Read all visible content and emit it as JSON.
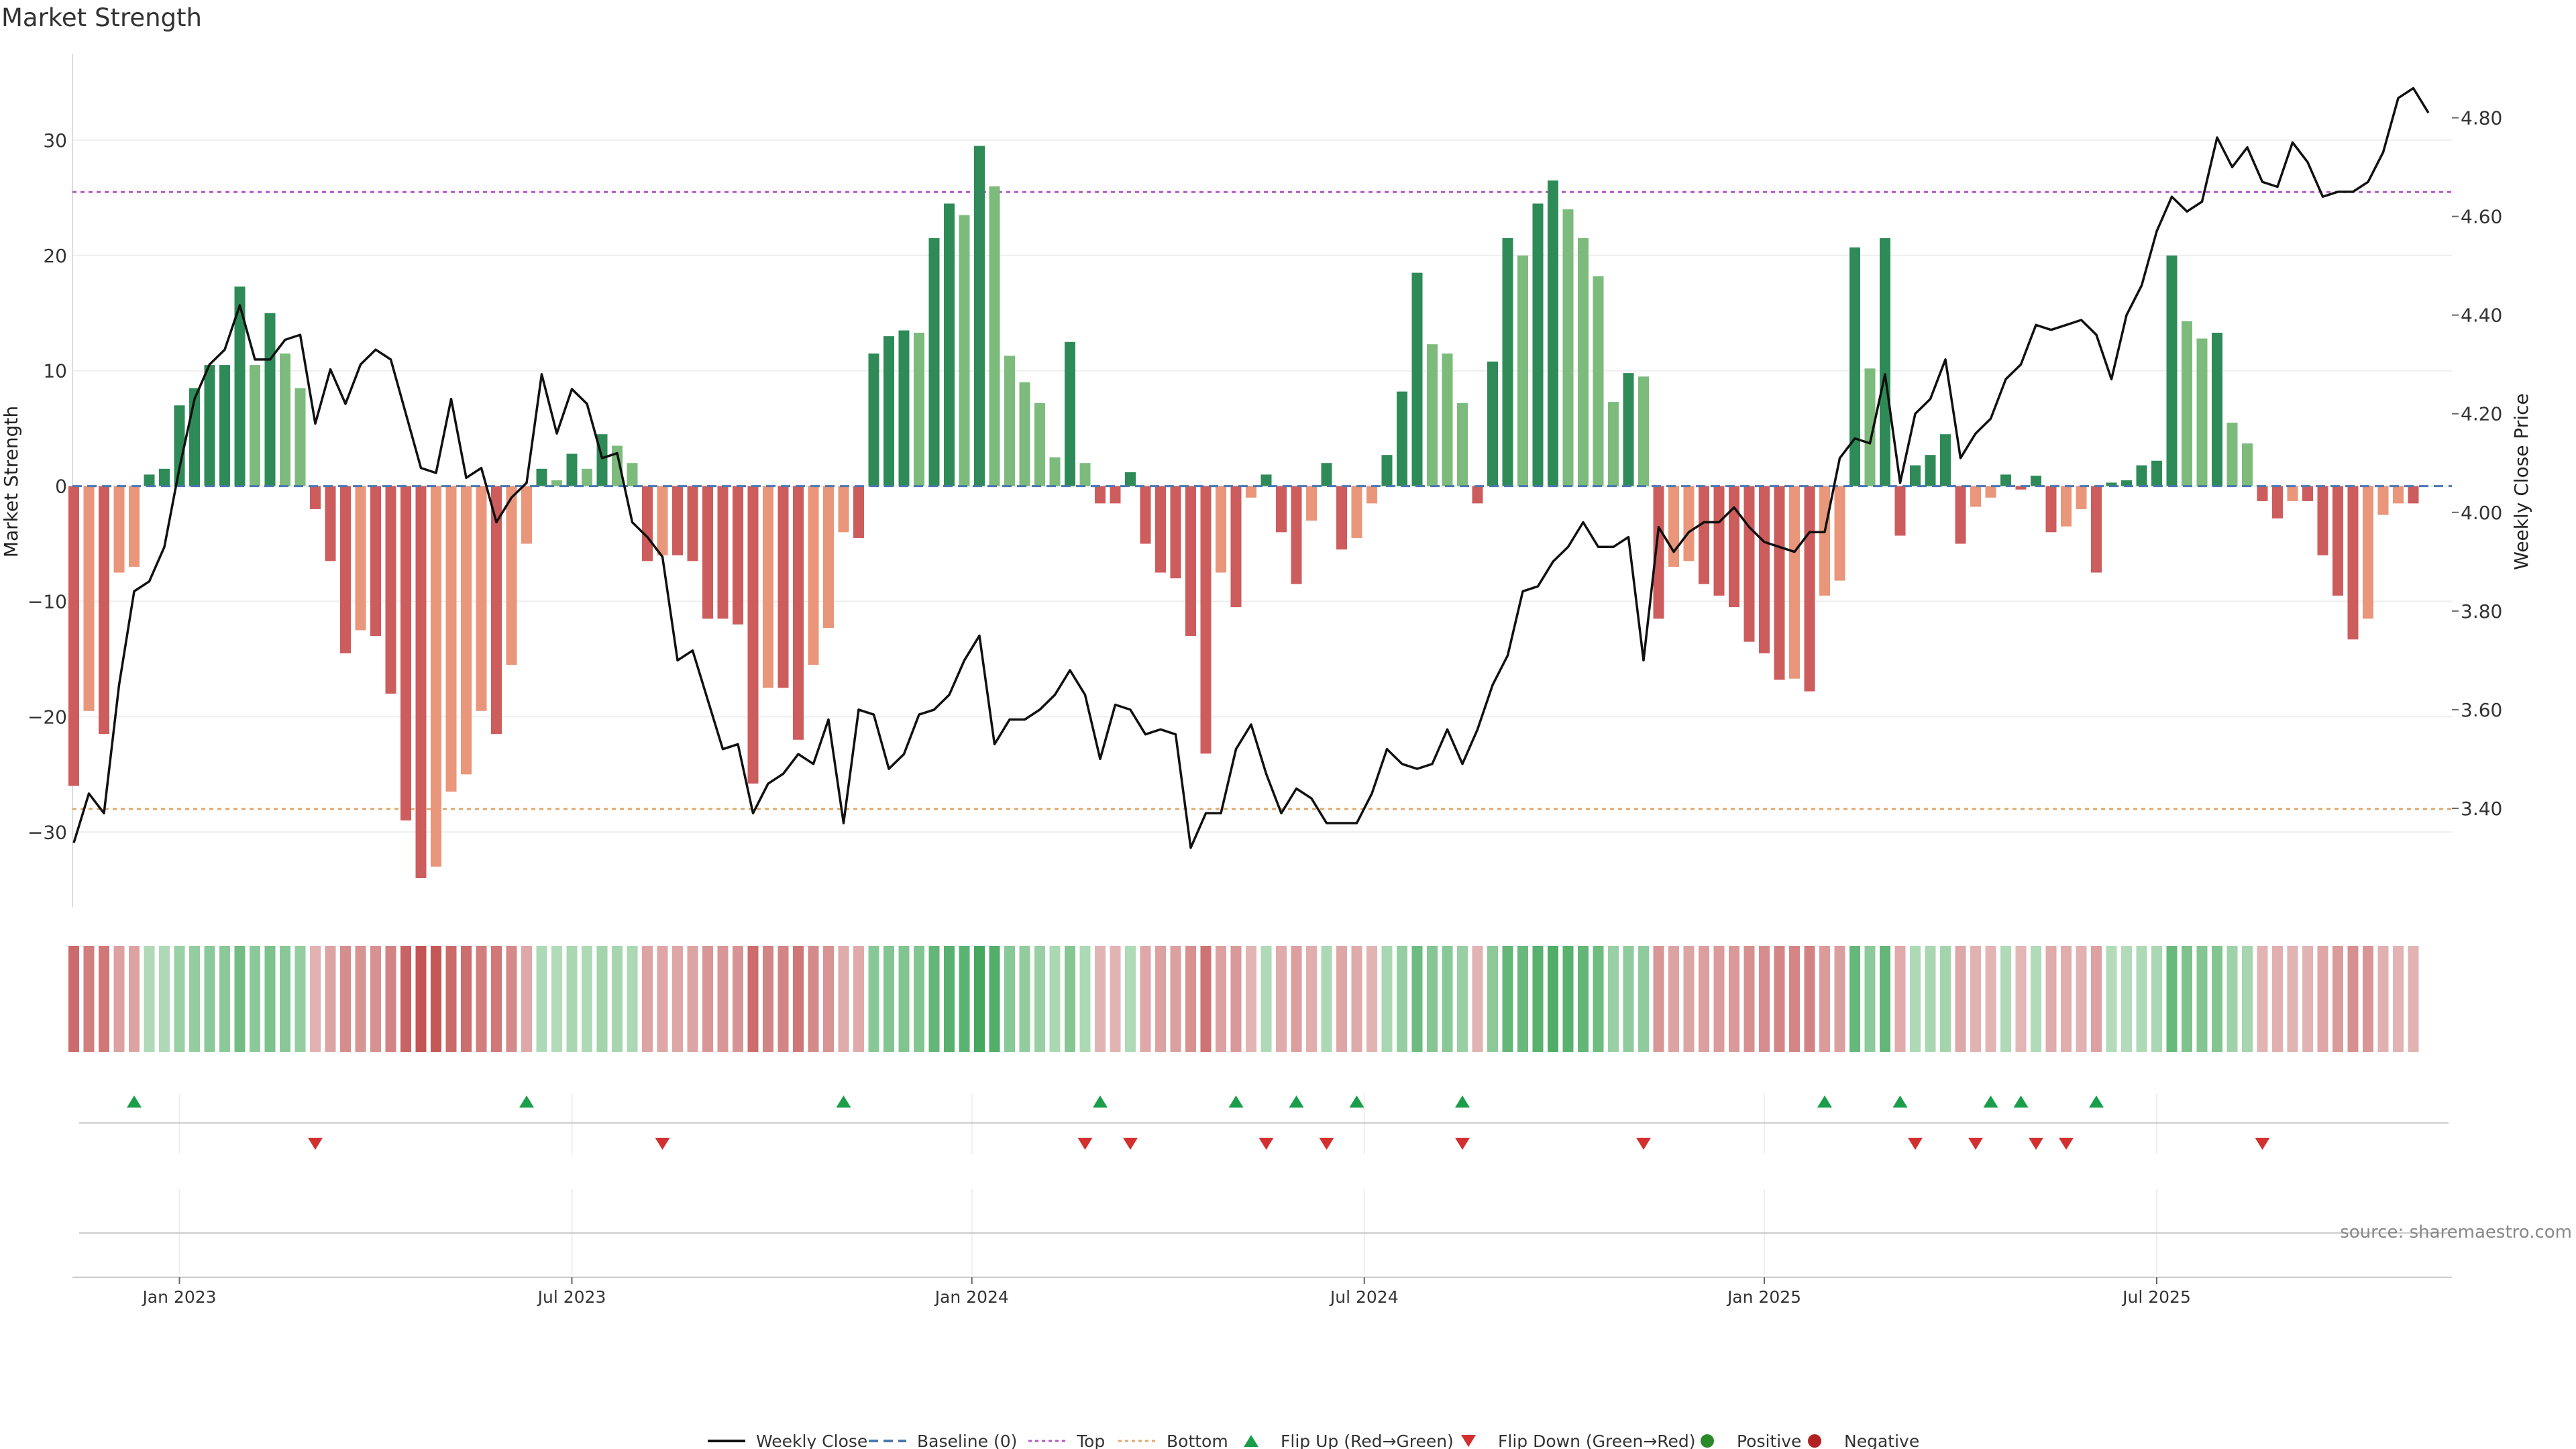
{
  "title": "Market Strength",
  "source": "source: sharemaestro.com",
  "colors": {
    "green_strong": "#2e8b57",
    "green_light": "#7dbb7d",
    "red_strong": "#cd5c5c",
    "red_light": "#e9967a",
    "close_line": "#111111",
    "baseline": "#4a78b0",
    "top_line": "#b455c8",
    "bottom_line": "#e0a86a",
    "flip_up": "#1a9e4a",
    "flip_down": "#d32f2f",
    "positive": "#2a8a2a",
    "negative": "#b22222"
  },
  "legend": [
    {
      "label": "Weekly Close",
      "icon": "solid-line"
    },
    {
      "label": "Baseline (0)",
      "icon": "dashed-line"
    },
    {
      "label": "Top",
      "icon": "dotted-line"
    },
    {
      "label": "Bottom",
      "icon": "dotted-line"
    },
    {
      "label": "Flip Up (Red→Green)",
      "icon": "triangle-up"
    },
    {
      "label": "Flip Down (Green→Red)",
      "icon": "triangle-down"
    },
    {
      "label": "Positive",
      "icon": "circle"
    },
    {
      "label": "Negative",
      "icon": "circle"
    }
  ],
  "chart_data": {
    "type": "bar",
    "title": "Market Strength",
    "ylabel": "Market Strength",
    "y2label": "Weekly Close Price",
    "ylim": [
      -36.5,
      37.5
    ],
    "y2lim": [
      3.2,
      4.93
    ],
    "yticks": [
      -30,
      -20,
      -10,
      0,
      10,
      20,
      30
    ],
    "y2ticks": [
      "3.40",
      "3.60",
      "3.80",
      "4.00",
      "4.20",
      "4.40",
      "4.60",
      "4.80"
    ],
    "x_ticks": [
      {
        "label": "Jan 2023",
        "week": 7
      },
      {
        "label": "Jul 2023",
        "week": 33
      },
      {
        "label": "Jan 2024",
        "week": 59.5
      },
      {
        "label": "Jul 2024",
        "week": 85.5
      },
      {
        "label": "Jan 2025",
        "week": 112
      },
      {
        "label": "Jul 2025",
        "week": 138
      }
    ],
    "top_threshold": 25.5,
    "bottom_threshold": -28,
    "baseline": 0,
    "strength": [
      -26,
      -19.5,
      -21.5,
      -7.5,
      -7,
      1,
      1.5,
      7,
      8.5,
      10.5,
      10.5,
      17.3,
      10.5,
      15,
      11.5,
      8.5,
      -2,
      -6.5,
      -14.5,
      -12.5,
      -13,
      -18,
      -29,
      -34,
      -33,
      -26.5,
      -25,
      -19.5,
      -21.5,
      -15.5,
      -5,
      1.5,
      0.5,
      2.8,
      1.5,
      4.5,
      3.5,
      2,
      -6.5,
      -6,
      -6,
      -6.5,
      -11.5,
      -11.5,
      -12,
      -25.8,
      -17.5,
      -17.5,
      -22,
      -15.5,
      -12.3,
      -4,
      -4.5,
      11.5,
      13,
      13.5,
      13.3,
      21.5,
      24.5,
      23.5,
      29.5,
      26,
      11.3,
      9,
      7.2,
      2.5,
      12.5,
      2,
      -1.5,
      -1.5,
      1.2,
      -5,
      -7.5,
      -8,
      -13,
      -23.2,
      -7.5,
      -10.5,
      -1,
      1,
      -4,
      -8.5,
      -3,
      2,
      -5.5,
      -4.5,
      -1.5,
      2.7,
      8.2,
      18.5,
      12.3,
      11.5,
      7.2,
      -1.5,
      10.8,
      21.5,
      20,
      24.5,
      26.5,
      24,
      21.5,
      18.2,
      7.3,
      9.8,
      9.5,
      -11.5,
      -7,
      -6.5,
      -8.5,
      -9.5,
      -10.5,
      -13.5,
      -14.5,
      -16.8,
      -16.7,
      -17.8,
      -9.5,
      -8.2,
      20.7,
      10.2,
      21.5,
      -4.3,
      1.8,
      2.7,
      4.5,
      -5,
      -1.8,
      -1,
      1,
      -0.3,
      0.9,
      -4,
      -3.5,
      -2,
      -7.5,
      0.3,
      0.5,
      1.8,
      2.2,
      20,
      14.3,
      12.8,
      13.3,
      5.5,
      3.7,
      -1.3,
      -2.8,
      -1.3,
      -1.3,
      -6,
      -9.5,
      -13.3,
      -11.5,
      -2.5,
      -1.5,
      -1.5
    ],
    "close": [
      3.33,
      3.43,
      3.39,
      3.65,
      3.84,
      3.86,
      3.93,
      4.09,
      4.23,
      4.3,
      4.33,
      4.42,
      4.31,
      4.31,
      4.35,
      4.36,
      4.18,
      4.29,
      4.22,
      4.3,
      4.33,
      4.31,
      4.2,
      4.09,
      4.08,
      4.23,
      4.07,
      4.09,
      3.98,
      4.03,
      4.06,
      4.28,
      4.16,
      4.25,
      4.22,
      4.11,
      4.12,
      3.98,
      3.95,
      3.91,
      3.7,
      3.72,
      3.62,
      3.52,
      3.53,
      3.39,
      3.45,
      3.47,
      3.51,
      3.49,
      3.58,
      3.37,
      3.6,
      3.59,
      3.48,
      3.51,
      3.59,
      3.6,
      3.63,
      3.7,
      3.75,
      3.53,
      3.58,
      3.58,
      3.6,
      3.63,
      3.68,
      3.63,
      3.5,
      3.61,
      3.6,
      3.55,
      3.56,
      3.55,
      3.32,
      3.39,
      3.39,
      3.52,
      3.57,
      3.47,
      3.39,
      3.44,
      3.42,
      3.37,
      3.37,
      3.37,
      3.43,
      3.52,
      3.49,
      3.48,
      3.49,
      3.56,
      3.49,
      3.56,
      3.65,
      3.71,
      3.84,
      3.85,
      3.9,
      3.93,
      3.98,
      3.93,
      3.93,
      3.95,
      3.7,
      3.97,
      3.92,
      3.96,
      3.98,
      3.98,
      4.01,
      3.97,
      3.94,
      3.93,
      3.92,
      3.96,
      3.96,
      4.11,
      4.15,
      4.14,
      4.28,
      4.06,
      4.2,
      4.23,
      4.31,
      4.11,
      4.16,
      4.19,
      4.27,
      4.3,
      4.38,
      4.37,
      4.38,
      4.39,
      4.36,
      4.27,
      4.4,
      4.46,
      4.57,
      4.64,
      4.61,
      4.63,
      4.76,
      4.7,
      4.74,
      4.67,
      4.66,
      4.75,
      4.71,
      4.64,
      4.65,
      4.65,
      4.67,
      4.73,
      4.84,
      4.86,
      4.81
    ],
    "flip_up_weeks": [
      4,
      30,
      51,
      68,
      77,
      81,
      85,
      92,
      116,
      121,
      127,
      129,
      134
    ],
    "flip_down_weeks": [
      16,
      39,
      67,
      70,
      79,
      83,
      92,
      104,
      122,
      126,
      130,
      132,
      145
    ]
  }
}
